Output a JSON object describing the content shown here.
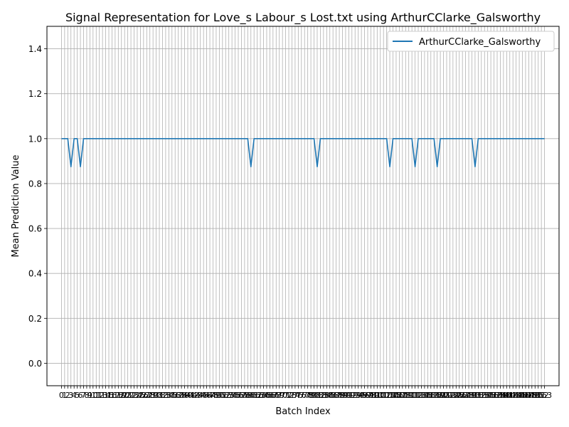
{
  "chart_data": {
    "type": "line",
    "title": "Signal Representation for Love_s Labour_s Lost.txt using ArthurCClarke_Galsworthy",
    "xlabel": "Batch Index",
    "ylabel": "Mean Prediction Value",
    "xlim": [
      -4.6,
      157.6
    ],
    "ylim": [
      -0.1,
      1.5
    ],
    "yticks": [
      0.0,
      0.2,
      0.4,
      0.6,
      0.8,
      1.0,
      1.2,
      1.4
    ],
    "ytick_labels": [
      "0.0",
      "0.2",
      "0.4",
      "0.6",
      "0.8",
      "1.0",
      "1.2",
      "1.4"
    ],
    "x_start": 0,
    "x_end": 153,
    "last_tick_label": "153",
    "grid": true,
    "legend_position": "upper right",
    "series": [
      {
        "name": "ArthurCClarke_Galsworthy",
        "color": "#1f77b4",
        "default_value": 1.0,
        "dips": [
          {
            "x": 3,
            "y": 0.875
          },
          {
            "x": 6,
            "y": 0.875
          },
          {
            "x": 60,
            "y": 0.875
          },
          {
            "x": 81,
            "y": 0.875
          },
          {
            "x": 104,
            "y": 0.875
          },
          {
            "x": 112,
            "y": 0.875
          },
          {
            "x": 119,
            "y": 0.875
          },
          {
            "x": 131,
            "y": 0.875
          }
        ]
      }
    ]
  }
}
